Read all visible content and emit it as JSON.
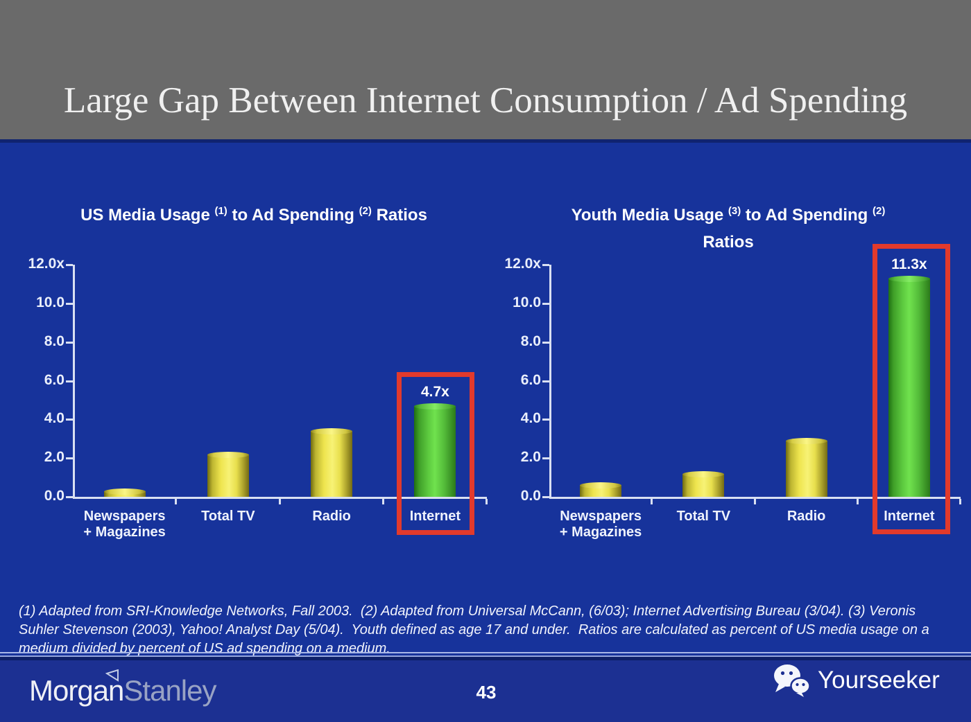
{
  "slide": {
    "title": "Large Gap Between Internet Consumption / Ad Spending",
    "page_number": "43",
    "footnote": "(1) Adapted from SRI-Knowledge Networks, Fall 2003.  (2) Adapted from Universal McCann, (6/03); Internet Advertising Bureau (3/04). (3) Veronis Suhler Stevenson (2003), Yahoo! Analyst Day (5/04).  Youth defined as age 17 and under.  Ratios are calculated as percent of US media usage on a medium divided by percent of US ad spending on a medium.",
    "brand_left": {
      "morgan": "Morgan",
      "stanley": "Stanley",
      "triangle_icon": "morgan-stanley-wedge"
    },
    "brand_right": {
      "label": "Yourseeker",
      "icon": "wechat-icon"
    }
  },
  "colors": {
    "header_gray": "#6A6A6A",
    "body_blue": "#17339B",
    "bottom_bar_blue": "#1C3092",
    "axis_white": "#D9E0F2",
    "bar_yellow": "#F7F275",
    "bar_green": "#70E24E",
    "highlight_red": "#E23A2C",
    "text_white": "#FFFFFF"
  },
  "chart_data": [
    {
      "type": "bar",
      "title": "US Media Usage (1) to Ad Spending (2) Ratios",
      "title_segments": [
        {
          "t": "US Media Usage "
        },
        {
          "sup": "(1)"
        },
        {
          "t": " to Ad Spending "
        },
        {
          "sup": "(2)"
        },
        {
          "t": " Ratios"
        }
      ],
      "categories": [
        "Newspapers\n+ Magazines",
        "Total TV",
        "Radio",
        "Internet"
      ],
      "values": [
        0.3,
        2.2,
        3.4,
        4.7
      ],
      "bar_colors": [
        "yellow",
        "yellow",
        "yellow",
        "green"
      ],
      "highlight_index": 3,
      "highlight_label": "4.7x",
      "y_ticks": [
        "12.0x",
        "10.0",
        "8.0",
        "6.0",
        "4.0",
        "2.0",
        "0.0"
      ],
      "ylim": [
        0,
        12
      ],
      "grid": false,
      "legend": false
    },
    {
      "type": "bar",
      "title": "Youth Media Usage (3) to Ad Spending (2) Ratios",
      "title_segments": [
        {
          "t": "Youth Media Usage "
        },
        {
          "sup": "(3)"
        },
        {
          "t": " to Ad Spending "
        },
        {
          "sup": "(2)"
        },
        {
          "br": true
        },
        {
          "t": "Ratios"
        }
      ],
      "categories": [
        "Newspapers\n+ Magazines",
        "Total TV",
        "Radio",
        "Internet"
      ],
      "values": [
        0.6,
        1.2,
        2.9,
        11.3
      ],
      "bar_colors": [
        "yellow",
        "yellow",
        "yellow",
        "green"
      ],
      "highlight_index": 3,
      "highlight_label": "11.3x",
      "y_ticks": [
        "12.0x",
        "10.0",
        "8.0",
        "6.0",
        "4.0",
        "2.0",
        "0.0"
      ],
      "ylim": [
        0,
        12
      ],
      "grid": false,
      "legend": false
    }
  ]
}
